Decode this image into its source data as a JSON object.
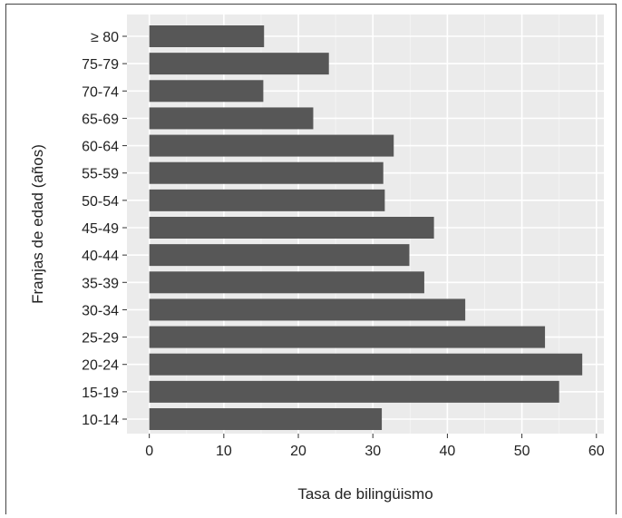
{
  "chart_data": {
    "type": "bar",
    "orientation": "horizontal",
    "categories": [
      "10-14",
      "15-19",
      "20-24",
      "25-29",
      "30-34",
      "35-39",
      "40-44",
      "45-49",
      "50-54",
      "55-59",
      "60-64",
      "65-69",
      "70-74",
      "75-79",
      "≥ 80"
    ],
    "values": [
      31.2,
      55.0,
      58.1,
      53.1,
      42.4,
      36.9,
      34.9,
      38.2,
      31.6,
      31.4,
      32.8,
      22.0,
      15.3,
      24.1,
      15.4
    ],
    "xlabel": "Tasa de bilingüismo",
    "ylabel": "Franjas de edad (años)",
    "xlim": [
      -3,
      61
    ],
    "xticks": [
      0,
      10,
      20,
      30,
      40,
      50,
      60
    ],
    "grid": true,
    "colors": {
      "bar": "#575757",
      "panel": "#ebebeb",
      "grid_major": "#ffffff",
      "grid_minor": "#f4f4f4"
    }
  }
}
